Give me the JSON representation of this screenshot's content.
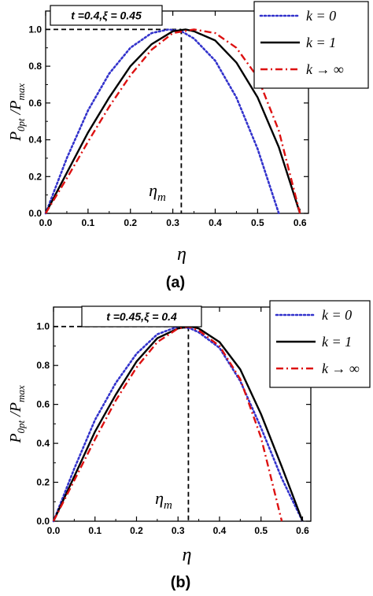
{
  "chart_data": [
    {
      "panel": "(a)",
      "type": "line",
      "caption": "(a)",
      "annotation": "t =0.4,ξ = 0.45",
      "ylabel": {
        "main": "P",
        "sub1": "0pt",
        "sep": " /P",
        "sub2": "max"
      },
      "xlabel": "η",
      "marker_label": {
        "main": "η",
        "sub": "m"
      },
      "xlim": [
        0.0,
        0.62
      ],
      "ylim": [
        0.0,
        1.1
      ],
      "xticks": [
        "0.0",
        "0.1",
        "0.2",
        "0.3",
        "0.4",
        "0.5",
        "0.6"
      ],
      "yticks": [
        "0.0",
        "0.2",
        "0.4",
        "0.6",
        "0.8",
        "1.0"
      ],
      "eta_m": 0.32,
      "legend_position": "top-right",
      "series": [
        {
          "name": "k = 0",
          "color": "#3333cc",
          "style": "dotted",
          "x": [
            0.0,
            0.05,
            0.1,
            0.15,
            0.2,
            0.25,
            0.29,
            0.32,
            0.35,
            0.4,
            0.45,
            0.5,
            0.55
          ],
          "y": [
            0.0,
            0.3,
            0.56,
            0.76,
            0.9,
            0.98,
            1.0,
            0.99,
            0.95,
            0.83,
            0.63,
            0.35,
            0.0
          ]
        },
        {
          "name": "k = 1",
          "color": "#000000",
          "style": "solid",
          "x": [
            0.0,
            0.05,
            0.1,
            0.15,
            0.2,
            0.25,
            0.3,
            0.33,
            0.35,
            0.4,
            0.45,
            0.5,
            0.55,
            0.6
          ],
          "y": [
            0.0,
            0.22,
            0.44,
            0.63,
            0.8,
            0.92,
            0.99,
            1.0,
            0.99,
            0.94,
            0.82,
            0.63,
            0.36,
            0.0
          ]
        },
        {
          "name": "k → ∞",
          "color": "#dd1111",
          "style": "dashdot",
          "x": [
            0.0,
            0.05,
            0.1,
            0.15,
            0.2,
            0.25,
            0.3,
            0.35,
            0.4,
            0.45,
            0.5,
            0.55,
            0.6
          ],
          "y": [
            0.0,
            0.19,
            0.39,
            0.58,
            0.75,
            0.89,
            0.98,
            1.0,
            0.98,
            0.9,
            0.74,
            0.45,
            0.0
          ]
        }
      ]
    },
    {
      "panel": "(b)",
      "type": "line",
      "caption": "(b)",
      "annotation": "t =0.45,ξ = 0.4",
      "ylabel": {
        "main": "P",
        "sub1": "0pt",
        "sep": " /P",
        "sub2": "max"
      },
      "xlabel": "η",
      "marker_label": {
        "main": "η",
        "sub": "m"
      },
      "xlim": [
        0.0,
        0.62
      ],
      "ylim": [
        0.0,
        1.1
      ],
      "xticks": [
        "0.0",
        "0.1",
        "0.2",
        "0.3",
        "0.4",
        "0.5",
        "0.6"
      ],
      "yticks": [
        "0.0",
        "0.2",
        "0.4",
        "0.6",
        "0.8",
        "1.0"
      ],
      "eta_m": 0.325,
      "legend_position": "top-right",
      "series": [
        {
          "name": "k = 0",
          "color": "#3333cc",
          "style": "dotted",
          "x": [
            0.0,
            0.05,
            0.1,
            0.15,
            0.2,
            0.25,
            0.3,
            0.33,
            0.35,
            0.4,
            0.45,
            0.5,
            0.55,
            0.6
          ],
          "y": [
            0.0,
            0.27,
            0.52,
            0.71,
            0.86,
            0.96,
            1.0,
            0.99,
            0.97,
            0.89,
            0.72,
            0.48,
            0.22,
            0.0
          ]
        },
        {
          "name": "k = 1",
          "color": "#000000",
          "style": "solid",
          "x": [
            0.0,
            0.05,
            0.1,
            0.15,
            0.2,
            0.25,
            0.3,
            0.33,
            0.35,
            0.4,
            0.45,
            0.5,
            0.55,
            0.6
          ],
          "y": [
            0.0,
            0.23,
            0.46,
            0.65,
            0.82,
            0.94,
            0.99,
            1.0,
            0.99,
            0.92,
            0.78,
            0.55,
            0.28,
            0.0
          ]
        },
        {
          "name": "k → ∞",
          "color": "#dd1111",
          "style": "dashdot",
          "x": [
            0.0,
            0.05,
            0.1,
            0.15,
            0.2,
            0.25,
            0.3,
            0.325,
            0.35,
            0.4,
            0.45,
            0.5,
            0.55
          ],
          "y": [
            0.0,
            0.21,
            0.42,
            0.62,
            0.79,
            0.92,
            0.99,
            1.0,
            0.98,
            0.9,
            0.73,
            0.43,
            0.0
          ]
        }
      ]
    }
  ]
}
